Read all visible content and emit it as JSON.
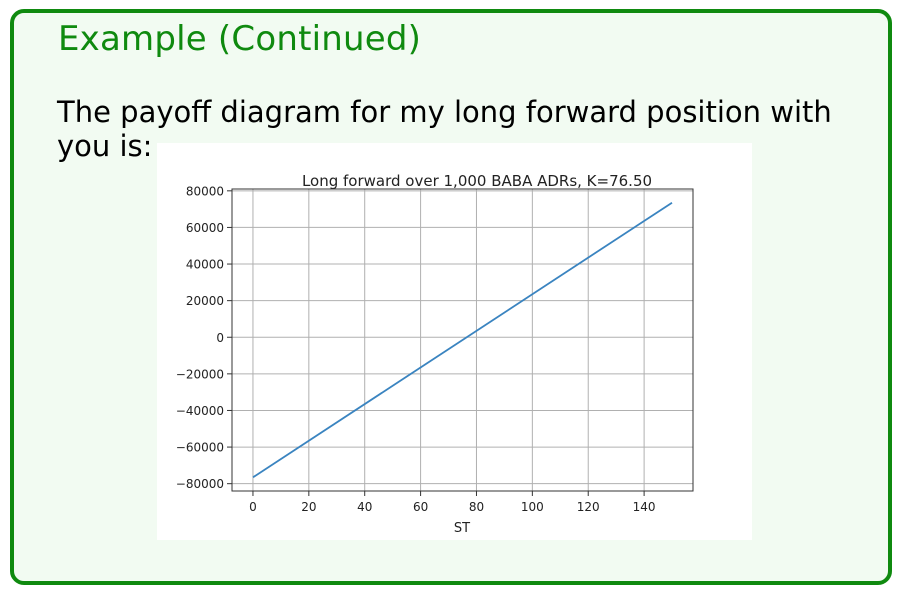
{
  "slide": {
    "title": "Example (Continued)",
    "body": "The payoff diagram for my long forward position with you is:"
  },
  "colors": {
    "frame": "#0f8a0f",
    "frame_fill": "#f2fbf2",
    "line": "#3a84c0"
  },
  "chart_data": {
    "type": "line",
    "title": "Long forward over 1,000 BABA ADRs, K=76.50",
    "xlabel": "ST",
    "ylabel": "",
    "xlim": [
      -7.5,
      157.5
    ],
    "ylim": [
      -84000,
      81000
    ],
    "grid": true,
    "x_ticks": [
      0,
      20,
      40,
      60,
      80,
      100,
      120,
      140
    ],
    "y_ticks": [
      80000,
      60000,
      40000,
      20000,
      0,
      -20000,
      -40000,
      -60000,
      -80000
    ],
    "y_tick_labels": [
      "80000",
      "60000",
      "40000",
      "20000",
      "0",
      "−20000",
      "−40000",
      "−60000",
      "−80000"
    ],
    "series": [
      {
        "x": [
          0,
          150
        ],
        "y": [
          -76500,
          73500
        ]
      }
    ]
  }
}
